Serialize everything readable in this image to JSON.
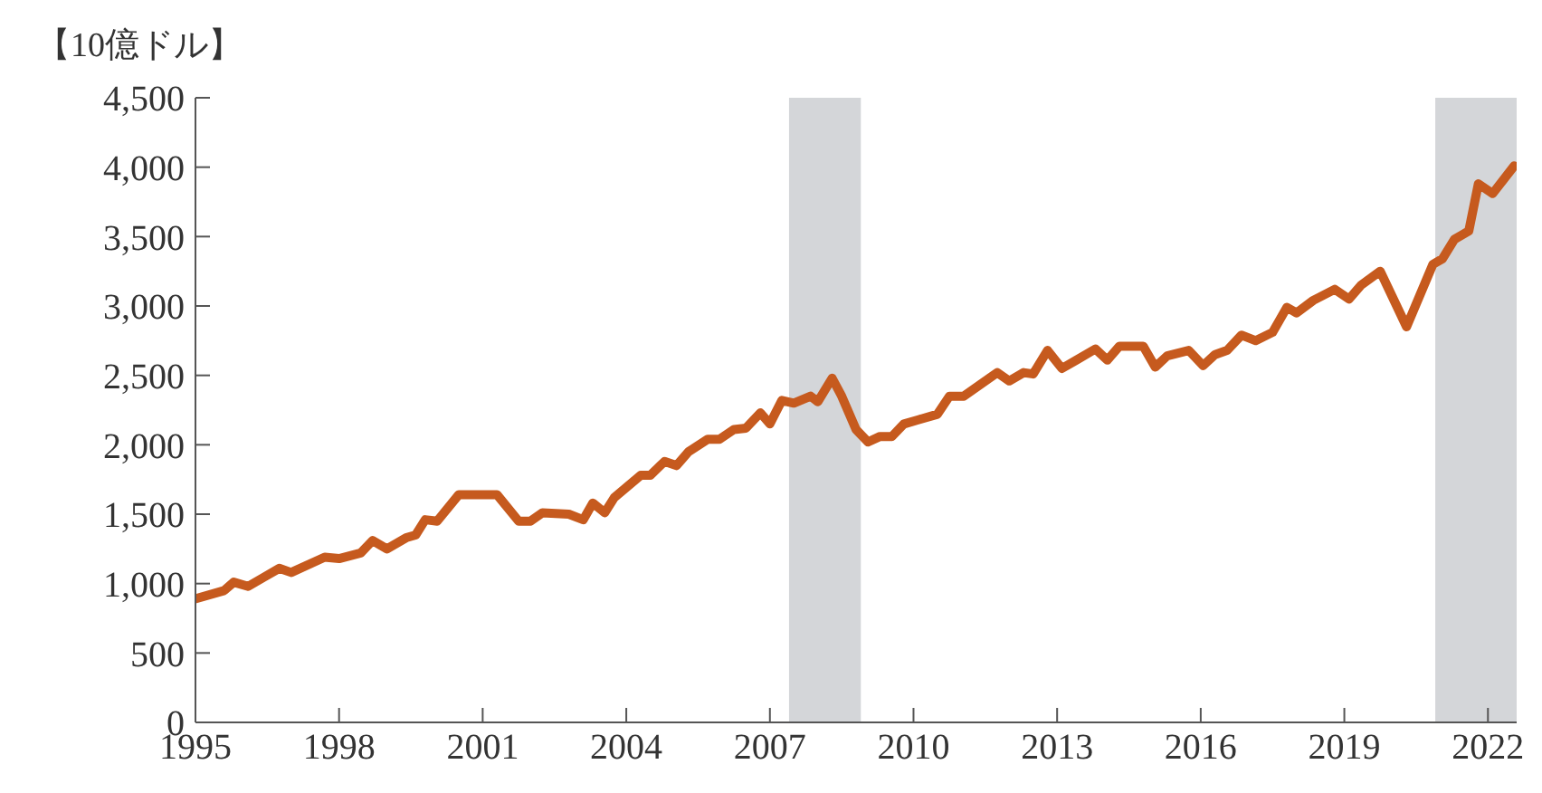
{
  "chart_data": {
    "type": "line",
    "ylabel": "【10億ドル】",
    "x": [
      1995.0,
      1995.6,
      1995.8,
      1996.1,
      1996.45,
      1996.75,
      1997.0,
      1997.7,
      1998.0,
      1998.45,
      1998.7,
      1999.0,
      1999.4,
      1999.6,
      1999.8,
      2000.05,
      2000.5,
      2001.3,
      2001.75,
      2002.0,
      2002.25,
      2002.8,
      2003.1,
      2003.3,
      2003.55,
      2003.75,
      2004.3,
      2004.5,
      2004.8,
      2005.05,
      2005.3,
      2005.7,
      2005.95,
      2006.25,
      2006.5,
      2006.8,
      2007.0,
      2007.25,
      2007.5,
      2007.85,
      2008.0,
      2008.3,
      2008.5,
      2008.8,
      2009.05,
      2009.3,
      2009.55,
      2009.8,
      2010.1,
      2010.5,
      2010.75,
      2011.05,
      2011.5,
      2011.75,
      2012.0,
      2012.3,
      2012.5,
      2012.8,
      2013.1,
      2013.4,
      2013.8,
      2014.05,
      2014.3,
      2014.8,
      2015.05,
      2015.3,
      2015.75,
      2016.05,
      2016.3,
      2016.55,
      2016.85,
      2017.15,
      2017.5,
      2017.8,
      2018.0,
      2018.35,
      2018.8,
      2019.1,
      2019.35,
      2019.75,
      2020.3,
      2020.85,
      2021.05,
      2021.3,
      2021.6,
      2021.8,
      2022.1,
      2022.55
    ],
    "series": [
      {
        "color": "#c65a1e",
        "values": [
          890,
          950,
          1010,
          980,
          1050,
          1110,
          1080,
          1190,
          1180,
          1220,
          1310,
          1250,
          1330,
          1350,
          1460,
          1450,
          1640,
          1640,
          1450,
          1450,
          1510,
          1500,
          1460,
          1580,
          1510,
          1620,
          1780,
          1780,
          1880,
          1850,
          1950,
          2040,
          2040,
          2110,
          2120,
          2230,
          2150,
          2320,
          2300,
          2350,
          2310,
          2480,
          2350,
          2110,
          2020,
          2060,
          2060,
          2150,
          2180,
          2220,
          2350,
          2350,
          2460,
          2520,
          2460,
          2520,
          2510,
          2680,
          2550,
          2610,
          2690,
          2610,
          2710,
          2710,
          2560,
          2640,
          2680,
          2570,
          2650,
          2680,
          2790,
          2750,
          2810,
          2990,
          2950,
          3040,
          3120,
          3050,
          3150,
          3250,
          2850,
          3300,
          3340,
          3480,
          3540,
          3880,
          3810,
          4010
        ]
      }
    ],
    "xlim": [
      1995,
      2022.6
    ],
    "xticks": [
      1995,
      1998,
      2001,
      2004,
      2007,
      2010,
      2013,
      2016,
      2019,
      2022
    ],
    "ylim": [
      0,
      4500
    ],
    "yticks": [
      0,
      500,
      {
        "value": 1000,
        "label": "1,000"
      },
      {
        "value": 1500,
        "label": "1,500"
      },
      {
        "value": 2000,
        "label": "2,000"
      },
      {
        "value": 2500,
        "label": "2,500"
      },
      {
        "value": 3000,
        "label": "3,000"
      },
      {
        "value": 3500,
        "label": "3,500"
      },
      {
        "value": 4000,
        "label": "4,000"
      },
      {
        "value": 4500,
        "label": "4,500"
      }
    ],
    "bands": [
      {
        "axis": "x",
        "from": 2007.4,
        "to": 2008.9,
        "color": "#d4d6d9"
      },
      {
        "axis": "x",
        "from": 2020.9,
        "to": 2022.6,
        "color": "#d4d6d9"
      }
    ],
    "line_style": "solid"
  }
}
